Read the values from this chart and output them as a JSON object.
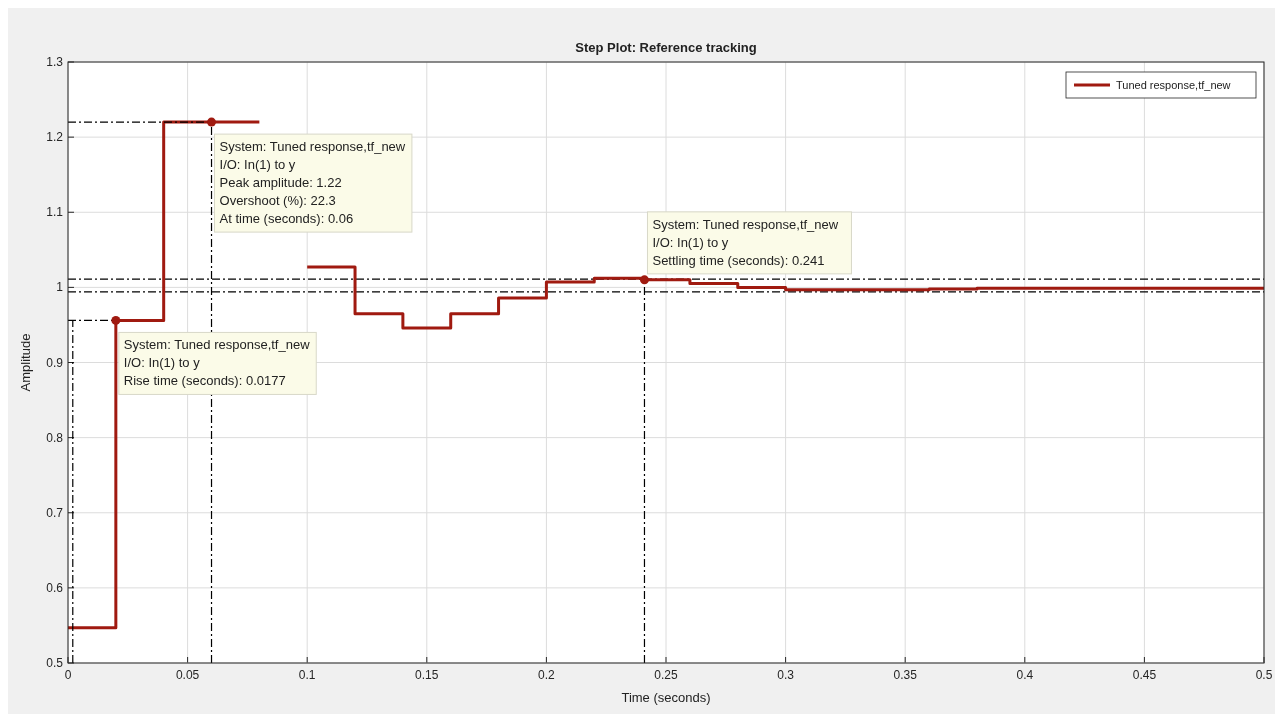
{
  "chart_data": {
    "type": "step",
    "title": "Step Plot: Reference tracking",
    "xlabel": "Time (seconds)",
    "ylabel": "Amplitude",
    "x": [
      0,
      0.02,
      0.04,
      0.08,
      0.1,
      0.12,
      0.14,
      0.16,
      0.18,
      0.2,
      0.22,
      0.24,
      0.26,
      0.28,
      0.3,
      0.36,
      0.38,
      0.5
    ],
    "series": [
      {
        "name": "Tuned response,tf_new",
        "color": "#a01a10",
        "values": [
          0.547,
          0.956,
          1.22,
          null,
          1.027,
          0.965,
          0.946,
          0.965,
          0.986,
          1.007,
          1.012,
          1.01,
          1.005,
          1.0,
          0.997,
          0.998,
          0.999,
          0.999
        ]
      },
      {
        "type": "line",
        "color": "#000000",
        "line_style": "dashed",
        "x": [
          0,
          0.06
        ],
        "values": [
          1.22,
          1.22
        ]
      },
      {
        "type": "line",
        "color": "#000000",
        "line_style": "dashed",
        "x": [
          0,
          0.02
        ],
        "values": [
          0.956,
          0.956
        ]
      },
      {
        "type": "line",
        "color": "#000000",
        "line_style": "dashed",
        "x": [
          0.06,
          0.06
        ],
        "values": [
          0.5,
          1.22
        ]
      },
      {
        "type": "line",
        "color": "#000000",
        "line_style": "dashed",
        "x": [
          0.241,
          0.241
        ],
        "values": [
          0.5,
          1.01
        ]
      },
      {
        "type": "line",
        "color": "#000000",
        "line_style": "dashed",
        "x": [
          0.002,
          0.002
        ],
        "values": [
          0.5,
          0.956
        ]
      }
    ],
    "ref_lines": [
      {
        "axis": "y",
        "value": 1.011,
        "color": "#000000",
        "line_style": "dashed"
      },
      {
        "axis": "y",
        "value": 0.994,
        "color": "#000000",
        "line_style": "dashed"
      }
    ],
    "annotations": [
      {
        "text": "System: Tuned response,tf_new\nI/O: In(1) to y\nPeak amplitude: 1.22\nOvershoot (%): 22.3\nAt time (seconds): 0.06",
        "x": 0.06,
        "y": 1.22
      },
      {
        "text": "System: Tuned response,tf_new\nI/O: In(1) to y\nRise time (seconds): 0.0177",
        "x": 0.02,
        "y": 0.956
      },
      {
        "text": "System: Tuned response,tf_new\nI/O: In(1) to y\nSettling time (seconds): 0.241",
        "x": 0.241,
        "y": 1.01
      }
    ],
    "xlim": [
      0,
      0.5
    ],
    "ylim": [
      0.5,
      1.3
    ],
    "xticks": [
      0,
      0.05,
      0.1,
      0.15,
      0.2,
      0.25,
      0.3,
      0.35,
      0.4,
      0.45,
      0.5
    ],
    "yticks": [
      0.5,
      0.6,
      0.7,
      0.8,
      0.9,
      1,
      1.1,
      1.2,
      1.3
    ],
    "grid": true,
    "legend": "top right",
    "line_style": "solid"
  }
}
